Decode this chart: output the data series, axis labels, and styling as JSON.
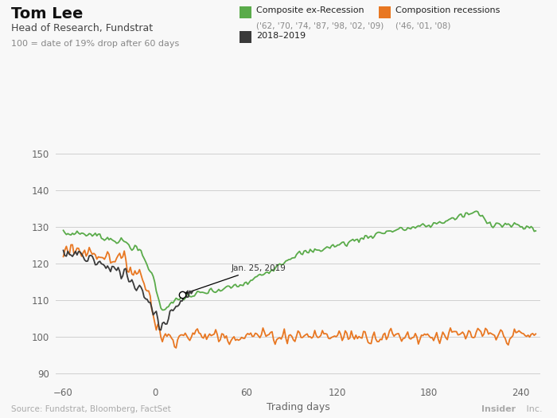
{
  "title": "Tom Lee",
  "subtitle": "Head of Research, Fundstrat",
  "note": "100 = date of 19% drop after 60 days",
  "xlabel": "Trading days",
  "source": "Source: Fundstrat, Bloomberg, FactSet",
  "brand_bold": "Insider",
  "brand_regular": " Inc.",
  "xlim": [
    -65,
    253
  ],
  "ylim": [
    88,
    152
  ],
  "yticks": [
    90,
    100,
    110,
    120,
    130,
    140,
    150
  ],
  "xticks": [
    -60,
    0,
    60,
    120,
    180,
    240
  ],
  "green_color": "#5aab4a",
  "orange_color": "#e87722",
  "black_color": "#3a3a3a",
  "bg_color": "#f8f8f8",
  "grid_color": "#d0d0d0",
  "legend_green_label1": "Composite ex-Recession",
  "legend_green_label2": "('62, '70, '74, '87, '98, '02, '09)",
  "legend_orange_label1": "Composition recessions",
  "legend_orange_label2": "('46, '01, '08)",
  "legend_black_label": "2018–2019",
  "annotation_text": "Jan. 25, 2019"
}
